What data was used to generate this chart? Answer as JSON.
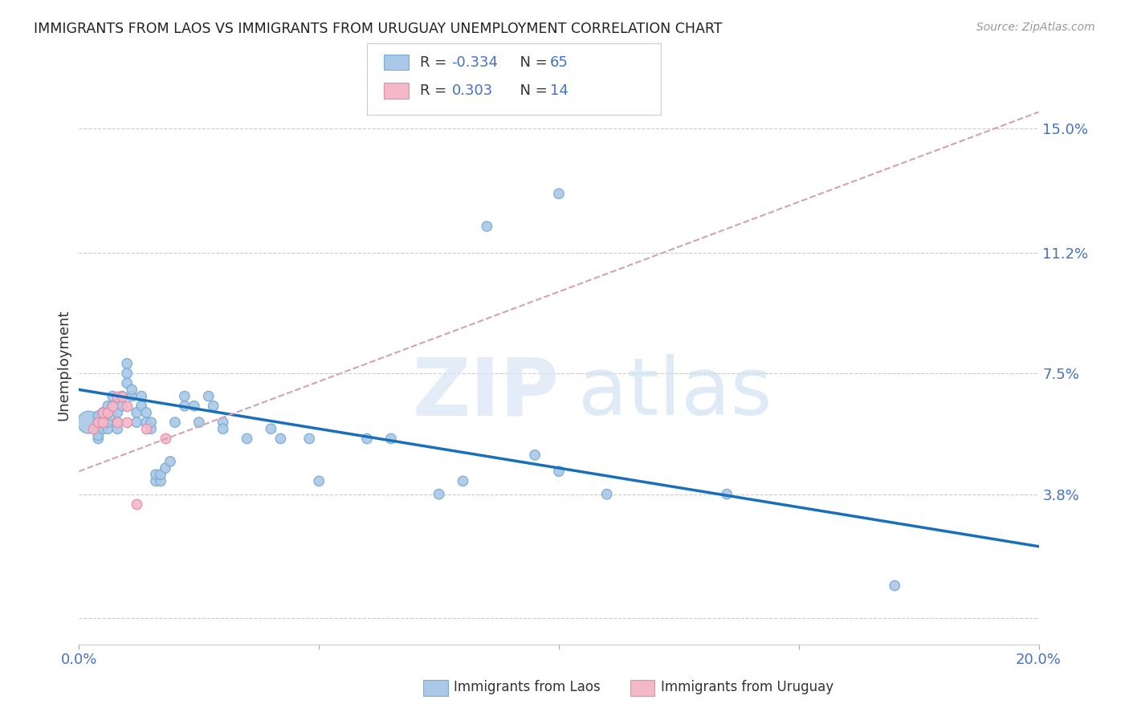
{
  "title": "IMMIGRANTS FROM LAOS VS IMMIGRANTS FROM URUGUAY UNEMPLOYMENT CORRELATION CHART",
  "source": "Source: ZipAtlas.com",
  "ylabel": "Unemployment",
  "yticks": [
    0.0,
    0.038,
    0.075,
    0.112,
    0.15
  ],
  "ytick_labels": [
    "",
    "3.8%",
    "7.5%",
    "11.2%",
    "15.0%"
  ],
  "xlim": [
    0.0,
    0.2
  ],
  "ylim": [
    -0.008,
    0.163
  ],
  "laos_color": "#aac8e8",
  "laos_edge_color": "#7aadd4",
  "uruguay_color": "#f4b8c8",
  "uruguay_edge_color": "#e090a8",
  "laos_line_color": "#1a6fba",
  "uruguay_line_color": "#d4a0b8",
  "laos_scatter": [
    [
      0.002,
      0.06
    ],
    [
      0.004,
      0.058
    ],
    [
      0.004,
      0.06
    ],
    [
      0.004,
      0.062
    ],
    [
      0.004,
      0.055
    ],
    [
      0.004,
      0.056
    ],
    [
      0.005,
      0.058
    ],
    [
      0.005,
      0.06
    ],
    [
      0.005,
      0.063
    ],
    [
      0.006,
      0.058
    ],
    [
      0.006,
      0.06
    ],
    [
      0.006,
      0.063
    ],
    [
      0.006,
      0.065
    ],
    [
      0.007,
      0.062
    ],
    [
      0.007,
      0.065
    ],
    [
      0.007,
      0.068
    ],
    [
      0.008,
      0.058
    ],
    [
      0.008,
      0.06
    ],
    [
      0.008,
      0.063
    ],
    [
      0.009,
      0.065
    ],
    [
      0.009,
      0.068
    ],
    [
      0.01,
      0.072
    ],
    [
      0.01,
      0.075
    ],
    [
      0.01,
      0.078
    ],
    [
      0.011,
      0.068
    ],
    [
      0.011,
      0.07
    ],
    [
      0.012,
      0.06
    ],
    [
      0.012,
      0.063
    ],
    [
      0.013,
      0.065
    ],
    [
      0.013,
      0.068
    ],
    [
      0.014,
      0.06
    ],
    [
      0.014,
      0.063
    ],
    [
      0.015,
      0.058
    ],
    [
      0.015,
      0.06
    ],
    [
      0.016,
      0.042
    ],
    [
      0.016,
      0.044
    ],
    [
      0.017,
      0.042
    ],
    [
      0.017,
      0.044
    ],
    [
      0.018,
      0.046
    ],
    [
      0.019,
      0.048
    ],
    [
      0.02,
      0.06
    ],
    [
      0.022,
      0.065
    ],
    [
      0.022,
      0.068
    ],
    [
      0.024,
      0.065
    ],
    [
      0.025,
      0.06
    ],
    [
      0.027,
      0.068
    ],
    [
      0.028,
      0.065
    ],
    [
      0.03,
      0.06
    ],
    [
      0.03,
      0.058
    ],
    [
      0.035,
      0.055
    ],
    [
      0.04,
      0.058
    ],
    [
      0.042,
      0.055
    ],
    [
      0.048,
      0.055
    ],
    [
      0.05,
      0.042
    ],
    [
      0.06,
      0.055
    ],
    [
      0.065,
      0.055
    ],
    [
      0.075,
      0.038
    ],
    [
      0.08,
      0.042
    ],
    [
      0.095,
      0.05
    ],
    [
      0.1,
      0.045
    ],
    [
      0.11,
      0.038
    ],
    [
      0.135,
      0.038
    ],
    [
      0.1,
      0.13
    ],
    [
      0.085,
      0.12
    ],
    [
      0.17,
      0.01
    ]
  ],
  "laos_sizes": [
    400,
    80,
    80,
    80,
    80,
    80,
    80,
    80,
    80,
    80,
    80,
    80,
    80,
    80,
    80,
    80,
    80,
    80,
    80,
    80,
    80,
    80,
    80,
    80,
    80,
    80,
    80,
    80,
    80,
    80,
    80,
    80,
    80,
    80,
    80,
    80,
    80,
    80,
    80,
    80,
    80,
    80,
    80,
    80,
    80,
    80,
    80,
    80,
    80,
    80,
    80,
    80,
    80,
    80,
    80,
    80,
    80,
    80,
    80,
    80,
    80,
    80,
    80,
    80,
    80
  ],
  "uruguay_scatter": [
    [
      0.003,
      0.058
    ],
    [
      0.004,
      0.06
    ],
    [
      0.005,
      0.06
    ],
    [
      0.005,
      0.063
    ],
    [
      0.006,
      0.063
    ],
    [
      0.007,
      0.065
    ],
    [
      0.008,
      0.068
    ],
    [
      0.008,
      0.06
    ],
    [
      0.009,
      0.068
    ],
    [
      0.01,
      0.065
    ],
    [
      0.01,
      0.06
    ],
    [
      0.012,
      0.035
    ],
    [
      0.014,
      0.058
    ],
    [
      0.018,
      0.055
    ]
  ],
  "laos_trend_x": [
    0.0,
    0.2
  ],
  "laos_trend_y": [
    0.07,
    0.022
  ],
  "uruguay_trend_x": [
    0.0,
    0.2
  ],
  "uruguay_trend_y": [
    0.045,
    0.155
  ]
}
